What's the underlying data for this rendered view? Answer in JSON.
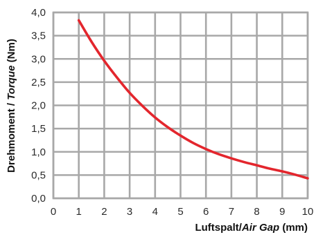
{
  "chart_data": {
    "type": "line",
    "xlabel": {
      "plain": "Luftspalt/",
      "italic": "Air Gap",
      "suffix": " (mm)"
    },
    "ylabel": {
      "plain": "Drehmoment / ",
      "italic": "Torque",
      "suffix": " (Nm)"
    },
    "x_ticks": [
      "0",
      "1",
      "2",
      "3",
      "4",
      "5",
      "6",
      "7",
      "8",
      "9",
      "10"
    ],
    "y_ticks": [
      "0,0",
      "0,5",
      "1,0",
      "1,5",
      "2,0",
      "2,5",
      "3,0",
      "3,5",
      "4,0"
    ],
    "xlim": [
      0,
      10
    ],
    "ylim": [
      0,
      4
    ],
    "grid": true,
    "series": [
      {
        "color": "#e3262d",
        "x": [
          1,
          1.5,
          2,
          2.5,
          3,
          3.5,
          4,
          4.5,
          5,
          5.5,
          6,
          6.5,
          7,
          7.5,
          8,
          8.5,
          9,
          9.5,
          10
        ],
        "y": [
          3.83,
          3.37,
          2.96,
          2.6,
          2.27,
          1.99,
          1.74,
          1.53,
          1.35,
          1.19,
          1.06,
          0.95,
          0.86,
          0.78,
          0.71,
          0.64,
          0.58,
          0.51,
          0.43
        ]
      }
    ]
  }
}
